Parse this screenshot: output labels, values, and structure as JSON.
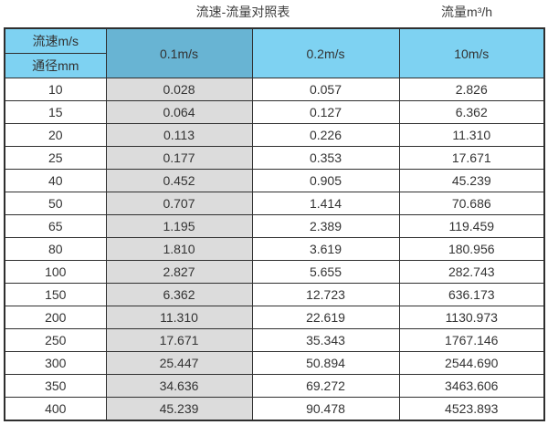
{
  "chart_data": {
    "type": "table",
    "title": "流速-流量对照表",
    "unit_label": "流量m³/h",
    "col_header": "流速m/s",
    "row_header": "通径mm",
    "columns": [
      "0.1m/s",
      "0.2m/s",
      "10m/s"
    ],
    "rows": [
      {
        "diameter": "10",
        "values": [
          "0.028",
          "0.057",
          "2.826"
        ]
      },
      {
        "diameter": "15",
        "values": [
          "0.064",
          "0.127",
          "6.362"
        ]
      },
      {
        "diameter": "20",
        "values": [
          "0.113",
          "0.226",
          "11.310"
        ]
      },
      {
        "diameter": "25",
        "values": [
          "0.177",
          "0.353",
          "17.671"
        ]
      },
      {
        "diameter": "40",
        "values": [
          "0.452",
          "0.905",
          "45.239"
        ]
      },
      {
        "diameter": "50",
        "values": [
          "0.707",
          "1.414",
          "70.686"
        ]
      },
      {
        "diameter": "65",
        "values": [
          "1.195",
          "2.389",
          "119.459"
        ]
      },
      {
        "diameter": "80",
        "values": [
          "1.810",
          "3.619",
          "180.956"
        ]
      },
      {
        "diameter": "100",
        "values": [
          "2.827",
          "5.655",
          "282.743"
        ]
      },
      {
        "diameter": "150",
        "values": [
          "6.362",
          "12.723",
          "636.173"
        ]
      },
      {
        "diameter": "200",
        "values": [
          "11.310",
          "22.619",
          "1130.973"
        ]
      },
      {
        "diameter": "250",
        "values": [
          "17.671",
          "35.343",
          "1767.146"
        ]
      },
      {
        "diameter": "300",
        "values": [
          "25.447",
          "50.894",
          "2544.690"
        ]
      },
      {
        "diameter": "350",
        "values": [
          "34.636",
          "69.272",
          "3463.606"
        ]
      },
      {
        "diameter": "400",
        "values": [
          "45.239",
          "90.478",
          "4523.893"
        ]
      }
    ],
    "layout_hints": {
      "highlighted_column": "0.1m/s",
      "grid": true
    }
  },
  "colors": {
    "header_light_blue": "#7ed2f2",
    "header_dark_blue": "#68b4d3",
    "highlight_column_gray": "#dcdcdc",
    "border": "#2f2f2f",
    "text": "#333333"
  }
}
